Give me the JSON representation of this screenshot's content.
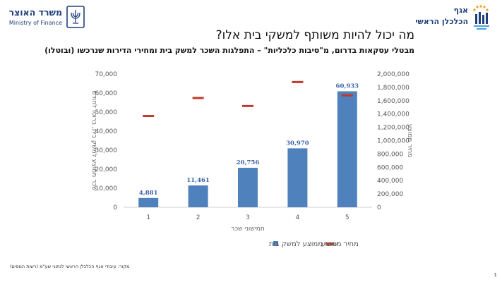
{
  "header": {
    "ministry_name_hebrew": "משרד האוצר",
    "ministry_name_english": "Ministry of Finance",
    "dept_line1": "אגף",
    "dept_line2": "הכלכלן הראשי"
  },
  "title": "מה יכול להיות משותף למשקי בית אלו?",
  "subtitle": "מבטלי עסקאות בדרום, מ\"סיבות כלכליות\" – התפלגות השכר למשק בית ומחירי הדירות שנרכשו (ובוטלו)",
  "source_note": "מקור: עיבודי אגף הכלכלן הראשי לנתוני שע\"מ (רשות המסים)",
  "page_number": "1",
  "chart_data": {
    "type": "bar",
    "categories": [
      "1",
      "2",
      "3",
      "4",
      "5"
    ],
    "xlabel": "חמישוני שכר",
    "ylabel_left": "שכר ממוצע למשק בית, ברוטו לחודש",
    "ylabel_right": "מחיר ממוצע",
    "ylim_left": [
      0,
      70000
    ],
    "ylim_right": [
      0,
      2000000
    ],
    "yticks_left": [
      "0",
      "10,000",
      "20,000",
      "30,000",
      "40,000",
      "50,000",
      "60,000",
      "70,000"
    ],
    "yticks_right": [
      "0",
      "200,000",
      "400,000",
      "600,000",
      "800,000",
      "1,000,000",
      "1,200,000",
      "1,400,000",
      "1,600,000",
      "1,800,000",
      "2,000,000"
    ],
    "series": [
      {
        "name": "שכר ממוצע למשק בית",
        "type": "bar",
        "axis": "left",
        "color": "#4f81bd",
        "values": [
          4881,
          11461,
          20756,
          30970,
          60933
        ],
        "labels": [
          "4,881",
          "11,461",
          "20,756",
          "30,970",
          "60,933"
        ]
      },
      {
        "name": "מחיר ממוצע",
        "type": "marker",
        "axis": "right",
        "color": "#c0392b",
        "values": [
          1370000,
          1640000,
          1520000,
          1880000,
          1680000
        ]
      }
    ],
    "legend_position": "bottom",
    "grid": false
  }
}
